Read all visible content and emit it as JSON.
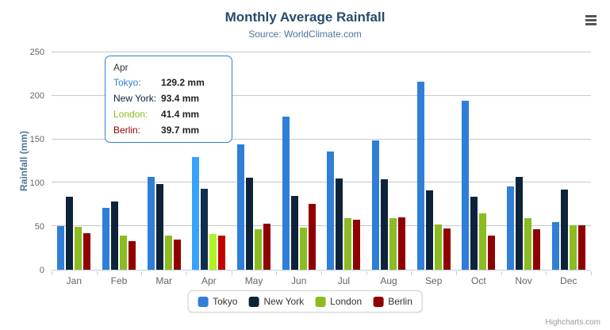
{
  "header": {
    "title": "Monthly Average Rainfall",
    "subtitle": "Source: WorldClimate.com"
  },
  "chart_data": {
    "type": "bar",
    "title": "Monthly Average Rainfall",
    "subtitle": "Source: WorldClimate.com",
    "categories": [
      "Jan",
      "Feb",
      "Mar",
      "Apr",
      "May",
      "Jun",
      "Jul",
      "Aug",
      "Sep",
      "Oct",
      "Nov",
      "Dec"
    ],
    "series": [
      {
        "name": "Tokyo",
        "color": "#2f7ed8",
        "values": [
          49.9,
          71.5,
          106.4,
          129.2,
          144.0,
          176.0,
          135.6,
          148.5,
          216.4,
          194.1,
          95.6,
          54.4
        ]
      },
      {
        "name": "New York",
        "color": "#0d233a",
        "values": [
          83.6,
          78.8,
          98.5,
          93.4,
          106.0,
          84.5,
          105.0,
          104.3,
          91.2,
          83.5,
          106.6,
          92.3
        ]
      },
      {
        "name": "London",
        "color": "#8bbc21",
        "values": [
          48.9,
          38.8,
          39.3,
          41.4,
          47.0,
          48.3,
          59.0,
          59.6,
          52.4,
          65.2,
          59.3,
          51.2
        ]
      },
      {
        "name": "Berlin",
        "color": "#910000",
        "values": [
          42.4,
          33.2,
          34.5,
          39.7,
          52.6,
          75.5,
          57.4,
          60.4,
          47.6,
          39.1,
          46.8,
          51.1
        ]
      }
    ],
    "xlabel": "",
    "ylabel": "Rainfall (mm)",
    "ylim": [
      0,
      250
    ],
    "yticks": [
      0,
      50,
      100,
      150,
      200,
      250
    ],
    "grid": true,
    "legend_position": "bottom",
    "hovered_category": "Apr"
  },
  "tooltip": {
    "header": "Apr",
    "border_color": "#2f7ed8",
    "rows": [
      {
        "label": "Tokyo:",
        "value": "129.2 mm",
        "color": "#2f7ed8"
      },
      {
        "label": "New York:",
        "value": "93.4 mm",
        "color": "#0d233a"
      },
      {
        "label": "London:",
        "value": "41.4 mm",
        "color": "#8bbc21"
      },
      {
        "label": "Berlin:",
        "value": "39.7 mm",
        "color": "#910000"
      }
    ]
  },
  "context_menu": {
    "icon": "hamburger-menu-icon"
  },
  "credits": {
    "label": "Highcharts.com"
  }
}
